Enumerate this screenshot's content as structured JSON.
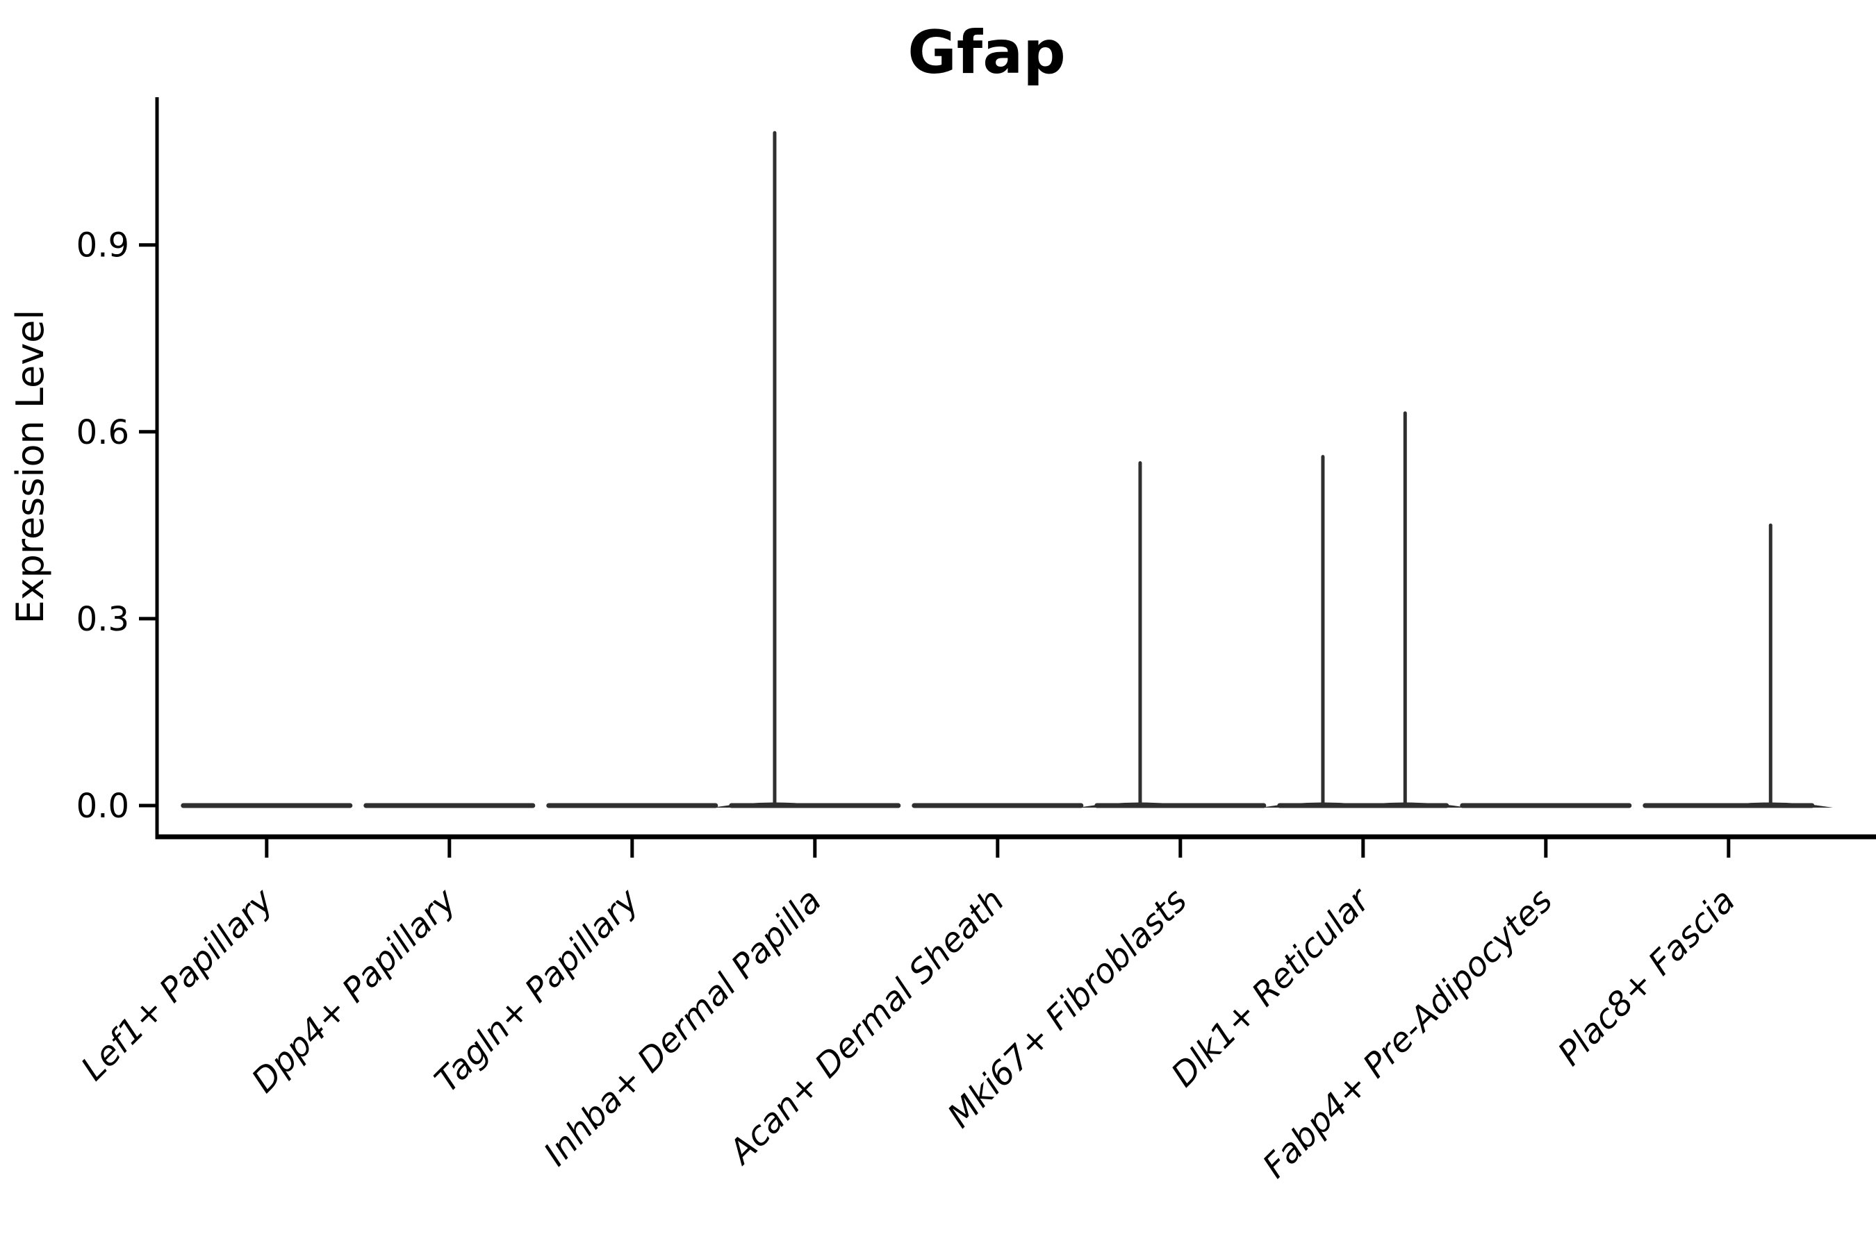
{
  "figure": {
    "background": "#ffffff"
  },
  "chart_data": {
    "type": "violin",
    "title": "Gfap",
    "xlabel": "",
    "ylabel": "Expression Level",
    "categories": [
      "Lef1+ Papillary",
      "Dpp4+ Papillary",
      "Tagln+ Papillary",
      "Inhba+ Dermal Papilla",
      "Acan+ Dermal Sheath",
      "Mki67+ Fibroblasts",
      "Dlk1+ Reticular",
      "Fabp4+ Pre-Adipocytes",
      "Plac8+ Fascia"
    ],
    "y_ticks": [
      "0.0",
      "0.3",
      "0.6",
      "0.9"
    ],
    "y_tick_values": [
      0.0,
      0.3,
      0.6,
      0.9
    ],
    "ylim": [
      -0.05,
      1.14
    ],
    "x_tick_angle_deg": 45,
    "x_labels_italic": true,
    "grid": false,
    "legend": "none",
    "violins": [
      {
        "category": "Lef1+ Papillary",
        "baseline_value": 0.0,
        "spikes": []
      },
      {
        "category": "Dpp4+ Papillary",
        "baseline_value": 0.0,
        "spikes": []
      },
      {
        "category": "Tagln+ Papillary",
        "baseline_value": 0.0,
        "spikes": []
      },
      {
        "category": "Inhba+ Dermal Papilla",
        "baseline_value": 0.0,
        "spikes": [
          {
            "value": 1.08,
            "offset_frac": -0.22
          }
        ]
      },
      {
        "category": "Acan+ Dermal Sheath",
        "baseline_value": 0.0,
        "spikes": []
      },
      {
        "category": "Mki67+ Fibroblasts",
        "baseline_value": 0.0,
        "spikes": [
          {
            "value": 0.55,
            "offset_frac": -0.22
          }
        ]
      },
      {
        "category": "Dlk1+ Reticular",
        "baseline_value": 0.0,
        "spikes": [
          {
            "value": 0.56,
            "offset_frac": -0.22
          },
          {
            "value": 0.63,
            "offset_frac": 0.23
          }
        ]
      },
      {
        "category": "Fabp4+ Pre-Adipocytes",
        "baseline_value": 0.0,
        "spikes": []
      },
      {
        "category": "Plac8+ Fascia",
        "baseline_value": 0.0,
        "spikes": [
          {
            "value": 0.45,
            "offset_frac": 0.23
          }
        ]
      }
    ],
    "colors": {
      "violin": "#2f2f2f",
      "axis": "#000000",
      "text": "#000000"
    }
  }
}
